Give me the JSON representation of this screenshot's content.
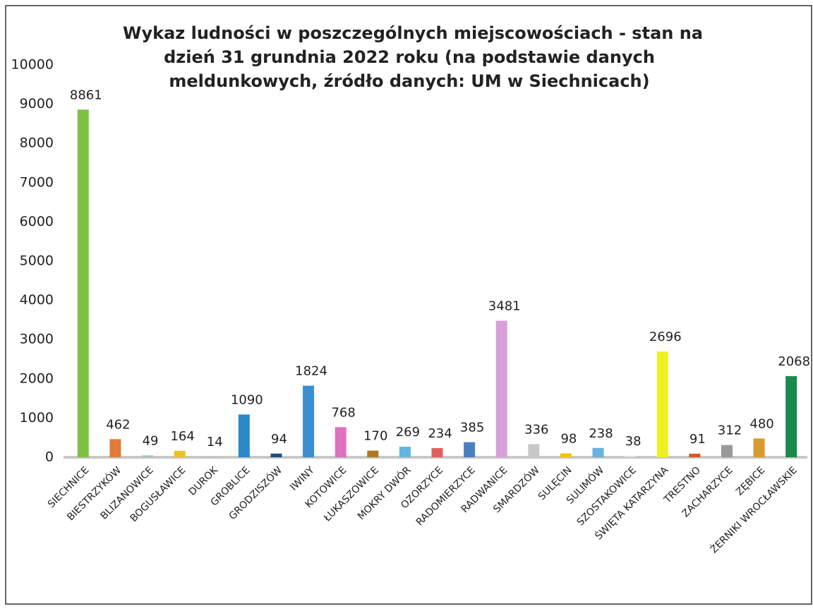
{
  "chart_data": {
    "type": "bar",
    "title": [
      "Wykaz ludności w poszczególnych miejscowościach - stan na",
      "dzień 31 grundnia 2022 roku (na podstawie danych",
      "meldunkowych, źródło danych: UM w Siechnicach)"
    ],
    "categories": [
      "SIECHNICE",
      "BIESTRZYKÓW",
      "BLIZANOWICE",
      "BOGUSŁAWICE",
      "DUROK",
      "GROBLICE",
      "GRODZISZÓW",
      "IWINY",
      "KOTOWICE",
      "ŁUKASZOWICE",
      "MOKRY DWÓR",
      "OZORZYCE",
      "RADOMIERZYCE",
      "RADWANICE",
      "SMARDZÓW",
      "SULĘCIN",
      "SULIMÓW",
      "SZOSTAKOWICE",
      "ŚWIĘTA KATARZYNA",
      "TRESTNO",
      "ZACHARZYCE",
      "ZĘBICE",
      "ŻERNIKI WROCŁAWSKIE"
    ],
    "values": [
      8861,
      462,
      49,
      164,
      14,
      1090,
      94,
      1824,
      768,
      170,
      269,
      234,
      385,
      3481,
      336,
      98,
      238,
      38,
      2696,
      91,
      312,
      480,
      2068
    ],
    "colors": [
      "#7dc242",
      "#e07b39",
      "#9fc5c0",
      "#f0c020",
      "#bbbbbb",
      "#2a8ac6",
      "#1f4e79",
      "#3a8fd0",
      "#e070c0",
      "#b07820",
      "#5fb6e0",
      "#e06060",
      "#4a80c0",
      "#d8a0d8",
      "#c8c8c8",
      "#f5c000",
      "#6ab0e0",
      "#dddddd",
      "#f0f020",
      "#d05a20",
      "#999999",
      "#d89a30",
      "#1a8a4a"
    ],
    "ylim": [
      0,
      10000
    ],
    "yticks": [
      0,
      1000,
      2000,
      3000,
      4000,
      5000,
      6000,
      7000,
      8000,
      9000,
      10000
    ],
    "grid": false
  }
}
